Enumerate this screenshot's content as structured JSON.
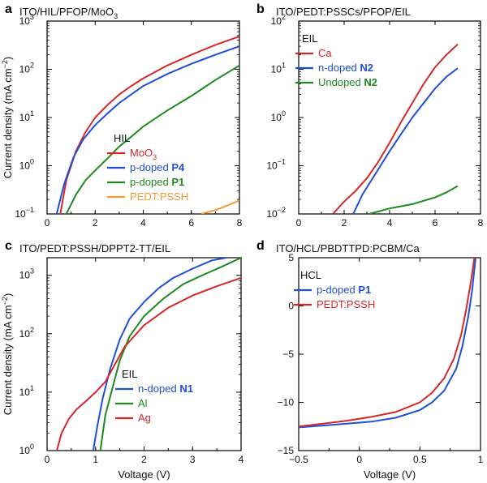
{
  "chart_data": [
    {
      "type": "line",
      "letter": "a",
      "title": "ITO/HIL/PFOP/MoO",
      "title_sub": "3",
      "xlabel": "",
      "ylabel": "Current density (mA cm",
      "ylabel_sup": "−2",
      "ylabel_end": ")",
      "xlim": [
        0,
        8
      ],
      "ylim": [
        0.1,
        1000
      ],
      "yscale": "log",
      "xticks": [
        "0",
        "2",
        "4",
        "6",
        "8"
      ],
      "yticks": [
        "10",
        "10",
        "10",
        "10",
        "10"
      ],
      "ytick_exps": [
        "−1",
        "0",
        "1",
        "2",
        "3"
      ],
      "legend_title": "HIL",
      "series": [
        {
          "name": "MoO",
          "name_sub": "3",
          "name_parts": [],
          "color": "#d62728",
          "x": [
            0.55,
            0.8,
            1.2,
            1.6,
            2,
            2.5,
            3,
            3.5,
            4,
            5,
            6,
            7,
            8
          ],
          "y": [
            0.1,
            0.5,
            2,
            5,
            10,
            18,
            30,
            45,
            65,
            120,
            200,
            320,
            480
          ]
        },
        {
          "name": "p-doped ",
          "name_bold": "P4",
          "color": "#1f4fd8",
          "x": [
            0.4,
            0.7,
            1.1,
            1.5,
            2,
            2.5,
            3,
            3.5,
            4,
            5,
            6,
            7,
            8
          ],
          "y": [
            0.1,
            0.4,
            1.5,
            3.5,
            7,
            12,
            20,
            30,
            45,
            80,
            130,
            200,
            300
          ]
        },
        {
          "name": "p-doped ",
          "name_bold": "P1",
          "color": "#1e8a1e",
          "x": [
            0.8,
            1.2,
            1.6,
            2,
            2.5,
            3,
            3.5,
            4,
            5,
            6,
            7,
            8
          ],
          "y": [
            0.1,
            0.25,
            0.5,
            0.8,
            1.4,
            2.5,
            4,
            6.5,
            14,
            28,
            60,
            120
          ]
        },
        {
          "name": "PEDT:PSSH",
          "color": "#f29b30",
          "x": [
            6.4,
            7,
            7.5,
            8
          ],
          "y": [
            0.1,
            0.12,
            0.15,
            0.19
          ]
        }
      ]
    },
    {
      "type": "line",
      "letter": "b",
      "title": "ITO/PEDT:PSSCs/PFOP/EIL",
      "xlim": [
        0,
        8
      ],
      "ylim": [
        0.01,
        100
      ],
      "yscale": "log",
      "xticks": [
        "0",
        "2",
        "4",
        "6",
        "8"
      ],
      "yticks": [
        "10",
        "10",
        "10",
        "10",
        "10"
      ],
      "ytick_exps": [
        "−2",
        "−1",
        "0",
        "1",
        "2"
      ],
      "legend_title": "EIL",
      "series": [
        {
          "name": "Ca",
          "color": "#d62728",
          "x": [
            1.5,
            2,
            2.5,
            3,
            3.5,
            4,
            4.5,
            5,
            5.5,
            6,
            6.5,
            7
          ],
          "y": [
            0.01,
            0.018,
            0.03,
            0.055,
            0.12,
            0.3,
            0.8,
            2,
            5,
            11,
            20,
            33
          ]
        },
        {
          "name": "n-doped ",
          "name_bold": "N2",
          "color": "#1f4fd8",
          "x": [
            2.4,
            2.8,
            3.2,
            3.6,
            4,
            4.5,
            5,
            5.5,
            6,
            6.5,
            7
          ],
          "y": [
            0.01,
            0.025,
            0.05,
            0.1,
            0.2,
            0.45,
            1,
            2,
            4,
            7,
            10.5
          ]
        },
        {
          "name": "Undoped ",
          "name_bold": "N2",
          "color": "#1e8a1e",
          "x": [
            3.1,
            4,
            5,
            6,
            6.5,
            7
          ],
          "y": [
            0.01,
            0.013,
            0.016,
            0.022,
            0.028,
            0.038
          ]
        }
      ]
    },
    {
      "type": "line",
      "letter": "c",
      "title": "ITO/PEDT:PSSH/DPPT2-TT/EIL",
      "xlabel": "Voltage (V)",
      "ylabel": "Current density (mA cm",
      "ylabel_sup": "−2",
      "ylabel_end": ")",
      "xlim": [
        0,
        4
      ],
      "ylim": [
        1,
        2000
      ],
      "yscale": "log",
      "xticks": [
        "0",
        "1",
        "2",
        "3",
        "4"
      ],
      "yticks": [
        "10",
        "10",
        "10",
        "10"
      ],
      "ytick_exps": [
        "0",
        "1",
        "2",
        "3"
      ],
      "legend_title": "EIL",
      "series": [
        {
          "name": "n-doped ",
          "name_bold": "N1",
          "color": "#1f4fd8",
          "x": [
            0.95,
            1.05,
            1.15,
            1.3,
            1.5,
            1.7,
            2,
            2.3,
            2.6,
            3,
            3.4,
            3.7
          ],
          "y": [
            1,
            3,
            8,
            25,
            80,
            180,
            350,
            600,
            900,
            1300,
            1800,
            2000
          ]
        },
        {
          "name": "Al",
          "color": "#1e8a1e",
          "x": [
            1.1,
            1.2,
            1.35,
            1.5,
            1.7,
            2,
            2.4,
            2.8,
            3.2,
            3.6,
            4
          ],
          "y": [
            1,
            4,
            12,
            35,
            90,
            200,
            400,
            700,
            1000,
            1400,
            2000
          ]
        },
        {
          "name": "Ag",
          "color": "#d62728",
          "x": [
            0.2,
            0.3,
            0.45,
            0.6,
            0.8,
            1,
            1.2,
            1.4,
            1.6,
            2,
            2.5,
            3,
            3.5,
            4
          ],
          "y": [
            1,
            2,
            3.5,
            5,
            7,
            10,
            15,
            30,
            60,
            140,
            280,
            450,
            650,
            900
          ]
        }
      ]
    },
    {
      "type": "line",
      "letter": "d",
      "title": "ITO/HCL/PBDTTPD:PCBM/Ca",
      "xlabel": "Voltage (V)",
      "ylabel": "",
      "xlim": [
        -0.5,
        1
      ],
      "ylim": [
        -15,
        5
      ],
      "yscale": "linear",
      "xticks": [
        "−0.5",
        "0",
        "0.5",
        "1"
      ],
      "xtick_vals": [
        -0.5,
        0,
        0.5,
        1
      ],
      "yticks": [
        "5",
        "0",
        "−5",
        "−10",
        "−15"
      ],
      "ytick_vals": [
        5,
        0,
        -5,
        -10,
        -15
      ],
      "legend_title": "HCL",
      "series": [
        {
          "name": "p-doped ",
          "name_bold": "P1",
          "color": "#1f4fd8",
          "x": [
            -0.5,
            -0.3,
            -0.1,
            0.1,
            0.3,
            0.5,
            0.6,
            0.7,
            0.8,
            0.85,
            0.9,
            0.93,
            0.96
          ],
          "y": [
            -12.6,
            -12.4,
            -12.2,
            -12.0,
            -11.6,
            -10.8,
            -10.0,
            -8.8,
            -6.5,
            -4.2,
            -1.0,
            1.5,
            5
          ]
        },
        {
          "name": "PEDT:PSSH",
          "color": "#d62728",
          "x": [
            -0.5,
            -0.3,
            -0.1,
            0.1,
            0.3,
            0.5,
            0.6,
            0.7,
            0.78,
            0.84,
            0.88,
            0.92,
            0.95
          ],
          "y": [
            -12.5,
            -12.2,
            -11.9,
            -11.5,
            -11.0,
            -10.0,
            -9.0,
            -7.5,
            -5.5,
            -3.0,
            -0.5,
            2.5,
            5
          ]
        }
      ]
    }
  ]
}
